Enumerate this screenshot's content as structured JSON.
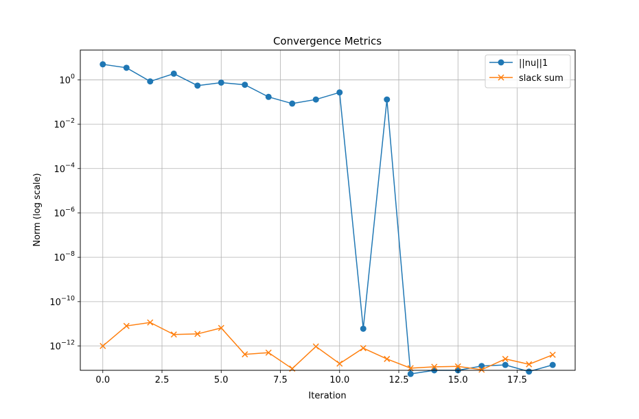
{
  "chart_data": {
    "type": "line",
    "title": "Convergence Metrics",
    "xlabel": "Iteration",
    "ylabel": "Norm (log scale)",
    "y_scale": "log",
    "xlim": [
      -0.95,
      19.95
    ],
    "ylim": [
      8e-14,
      22.0
    ],
    "x_ticks": [
      0.0,
      2.5,
      5.0,
      7.5,
      10.0,
      12.5,
      15.0,
      17.5
    ],
    "x_tick_labels": [
      "0.0",
      "2.5",
      "5.0",
      "7.5",
      "10.0",
      "12.5",
      "15.0",
      "17.5"
    ],
    "y_ticks": [
      {
        "value": 1.0,
        "base": "10",
        "exp": "0"
      },
      {
        "value": 0.01,
        "base": "10",
        "exp": "−2"
      },
      {
        "value": 0.0001,
        "base": "10",
        "exp": "−4"
      },
      {
        "value": 1e-06,
        "base": "10",
        "exp": "−6"
      },
      {
        "value": 1e-08,
        "base": "10",
        "exp": "−8"
      },
      {
        "value": 1e-10,
        "base": "10",
        "exp": "−10"
      },
      {
        "value": 1e-12,
        "base": "10",
        "exp": "−12"
      }
    ],
    "grid": true,
    "legend_position": "top-right",
    "x": [
      0,
      1,
      2,
      3,
      4,
      5,
      6,
      7,
      8,
      9,
      10,
      11,
      12,
      13,
      14,
      15,
      16,
      17,
      18,
      19
    ],
    "series": [
      {
        "name": "||nu||1",
        "color": "#1f77b4",
        "marker": "circle",
        "values": [
          5.0,
          3.5,
          0.85,
          1.9,
          0.55,
          0.75,
          0.6,
          0.17,
          0.085,
          0.13,
          0.27,
          6e-12,
          0.13,
          5.5e-14,
          8e-14,
          8e-14,
          1.25e-13,
          1.4e-13,
          7e-14,
          1.4e-13
        ]
      },
      {
        "name": "slack sum",
        "color": "#ff7f0e",
        "marker": "x",
        "values": [
          1e-12,
          8e-12,
          1.15e-11,
          3.3e-12,
          3.5e-12,
          6.5e-12,
          4.2e-13,
          5e-13,
          9.5e-14,
          9.5e-13,
          1.6e-13,
          8e-13,
          2.6e-13,
          1e-13,
          1.15e-13,
          1.2e-13,
          8.5e-14,
          2.6e-13,
          1.5e-13,
          4e-13
        ]
      }
    ]
  }
}
